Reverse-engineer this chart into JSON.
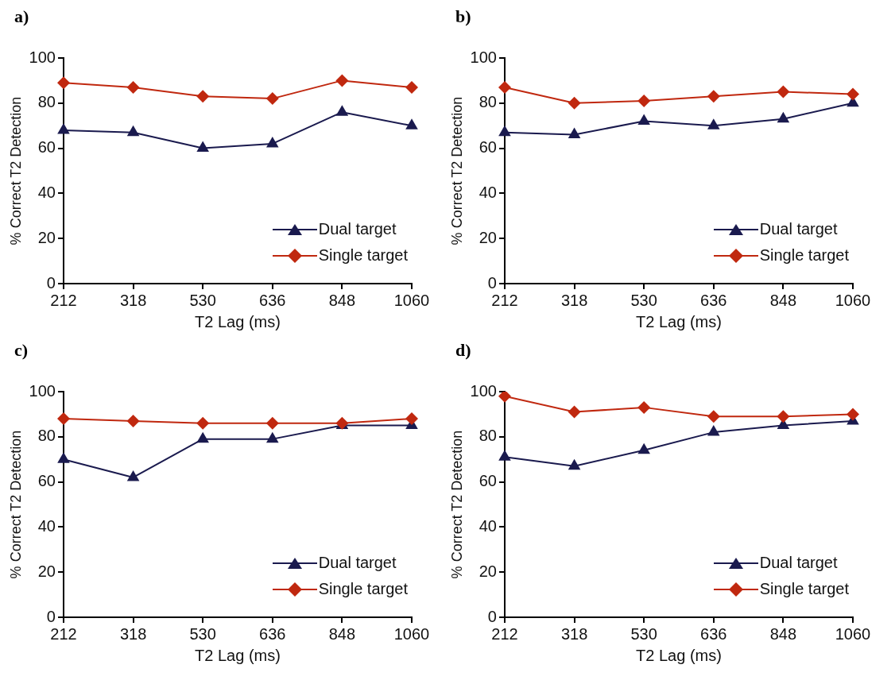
{
  "chart_data": [
    {
      "type": "line",
      "title": "a)",
      "xlabel": "T2 Lag (ms)",
      "ylabel": "% Correct T2 Detection",
      "categories": [
        "212",
        "318",
        "530",
        "636",
        "848",
        "1060"
      ],
      "ylim": [
        0,
        100
      ],
      "yticks": [
        0,
        20,
        40,
        60,
        80,
        100
      ],
      "grid": false,
      "legend": "bottom right",
      "line_style": "solid",
      "series": [
        {
          "name": "Dual target",
          "color": "#1a1a4e",
          "marker": "triangle",
          "values": [
            68,
            67,
            60,
            62,
            76,
            70
          ]
        },
        {
          "name": "Single target",
          "color": "#c0280f",
          "marker": "diamond",
          "values": [
            89,
            87,
            83,
            82,
            90,
            87
          ]
        }
      ]
    },
    {
      "type": "line",
      "title": "b)",
      "xlabel": "T2 Lag (ms)",
      "ylabel": "% Correct T2 Detection",
      "categories": [
        "212",
        "318",
        "530",
        "636",
        "848",
        "1060"
      ],
      "ylim": [
        0,
        100
      ],
      "yticks": [
        0,
        20,
        40,
        60,
        80,
        100
      ],
      "grid": false,
      "legend": "bottom right",
      "line_style": "solid",
      "series": [
        {
          "name": "Dual target",
          "color": "#1a1a4e",
          "marker": "triangle",
          "values": [
            67,
            66,
            72,
            70,
            73,
            80
          ]
        },
        {
          "name": "Single target",
          "color": "#c0280f",
          "marker": "diamond",
          "values": [
            87,
            80,
            81,
            83,
            85,
            84
          ]
        }
      ]
    },
    {
      "type": "line",
      "title": "c)",
      "xlabel": "T2 Lag (ms)",
      "ylabel": "% Correct T2 Detection",
      "categories": [
        "212",
        "318",
        "530",
        "636",
        "848",
        "1060"
      ],
      "ylim": [
        0,
        100
      ],
      "yticks": [
        0,
        20,
        40,
        60,
        80,
        100
      ],
      "grid": false,
      "legend": "bottom right",
      "line_style": "solid",
      "series": [
        {
          "name": "Dual target",
          "color": "#1a1a4e",
          "marker": "triangle",
          "values": [
            70,
            62,
            79,
            79,
            85,
            85
          ]
        },
        {
          "name": "Single target",
          "color": "#c0280f",
          "marker": "diamond",
          "values": [
            88,
            87,
            86,
            86,
            86,
            88
          ]
        }
      ]
    },
    {
      "type": "line",
      "title": "d)",
      "xlabel": "T2 Lag (ms)",
      "ylabel": "% Correct T2 Detection",
      "categories": [
        "212",
        "318",
        "530",
        "636",
        "848",
        "1060"
      ],
      "ylim": [
        0,
        100
      ],
      "yticks": [
        0,
        20,
        40,
        60,
        80,
        100
      ],
      "grid": false,
      "legend": "bottom right",
      "line_style": "solid",
      "series": [
        {
          "name": "Dual target",
          "color": "#1a1a4e",
          "marker": "triangle",
          "values": [
            71,
            67,
            74,
            82,
            85,
            87
          ]
        },
        {
          "name": "Single target",
          "color": "#c0280f",
          "marker": "diamond",
          "values": [
            98,
            91,
            93,
            89,
            89,
            90
          ]
        }
      ]
    }
  ]
}
